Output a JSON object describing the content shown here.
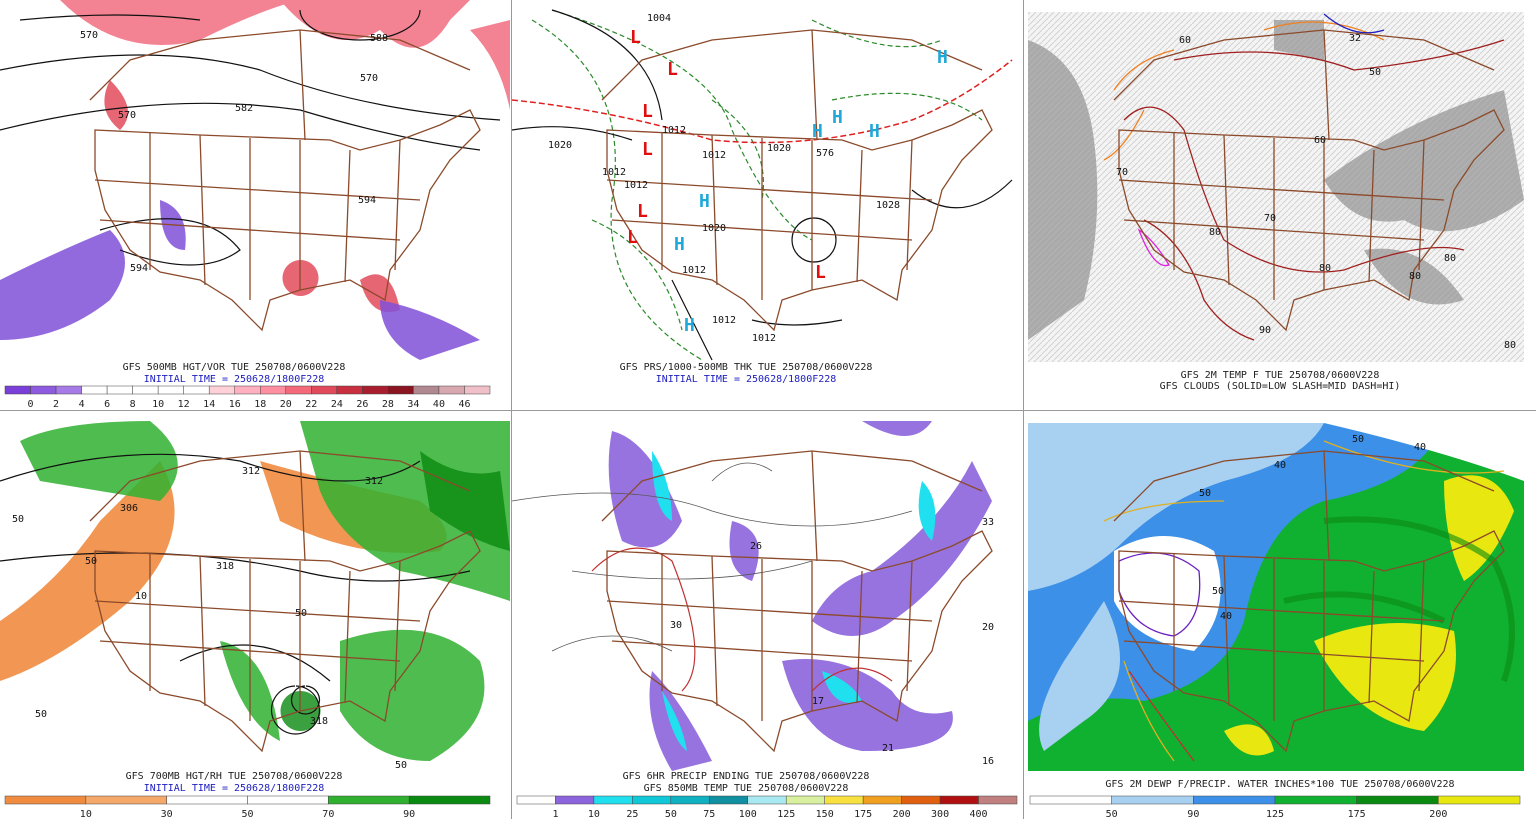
{
  "panels": [
    {
      "caption": "GFS 500MB HGT/VOR TUE 250708/0600V228",
      "initial_time": "INITIAL TIME = 250628/1800F228",
      "contour_labels": [
        "570",
        "588",
        "570",
        "570",
        "582",
        "594",
        "594"
      ],
      "colorbar": {
        "labels": [
          "0",
          "2",
          "4",
          "6",
          "8",
          "10",
          "12",
          "14",
          "16",
          "18",
          "20",
          "22",
          "24",
          "26",
          "28",
          "34",
          "40",
          "46"
        ],
        "colors": [
          "#7a3fd8",
          "#8e5ae0",
          "#a67be8",
          "#ffffff",
          "#ffffff",
          "#ffffff",
          "#ffffff",
          "#ffffff",
          "#ffd0d8",
          "#ffb0c0",
          "#ff8fa0",
          "#f46a7a",
          "#e04a5a",
          "#c83040",
          "#a81e2e",
          "#8a1420",
          "#b08890",
          "#d8a8b0",
          "#f0c0c8"
        ]
      }
    },
    {
      "caption": "GFS PRS/1000-500MB THK TUE 250708/0600V228",
      "initial_time": "INITIAL TIME = 250628/1800F228",
      "contour_labels": [
        "1004",
        "1012",
        "1020",
        "1020",
        "1012",
        "1012",
        "1012",
        "1020",
        "1012",
        "1012",
        "1012",
        "576",
        "1028"
      ],
      "centers": [
        "L",
        "L",
        "L",
        "L",
        "L",
        "L",
        "L",
        "H",
        "H",
        "H",
        "H",
        "H",
        "H",
        "H"
      ]
    },
    {
      "caption": "GFS 2M TEMP F TUE 250708/0600V228",
      "caption2": "GFS CLOUDS (SOLID=LOW SLASH=MID DASH=HI)",
      "contour_labels": [
        "32",
        "50",
        "60",
        "60",
        "70",
        "70",
        "80",
        "80",
        "80",
        "80",
        "90",
        "80"
      ]
    },
    {
      "caption": "GFS 700MB HGT/RH TUE 250708/0600V228",
      "initial_time": "INITIAL TIME = 250628/1800F228",
      "contour_labels": [
        "312",
        "306",
        "318",
        "312",
        "50",
        "50",
        "50",
        "50",
        "10",
        "318",
        "50"
      ],
      "colorbar": {
        "labels": [
          "10",
          "30",
          "50",
          "70",
          "90"
        ],
        "colors": [
          "#f08c40",
          "#f4a86a",
          "#ffffff",
          "#ffffff",
          "#30b030",
          "#0a8a10"
        ]
      }
    },
    {
      "caption": "GFS 6HR PRECIP ENDING TUE 250708/0600V228",
      "caption2": "GFS 850MB TEMP TUE 250708/0600V228",
      "contour_labels": [
        "33",
        "26",
        "20",
        "17",
        "21",
        "16",
        "30"
      ],
      "colorbar": {
        "labels": [
          "1",
          "10",
          "25",
          "50",
          "75",
          "100",
          "125",
          "150",
          "175",
          "200",
          "300",
          "400"
        ],
        "colors": [
          "#ffffff",
          "#8c64dc",
          "#20e0f0",
          "#10c8d8",
          "#10b0c0",
          "#1090a0",
          "#a8e8f0",
          "#d8f0a0",
          "#f8e040",
          "#f0a020",
          "#e06010",
          "#b01010",
          "#c08080"
        ]
      }
    },
    {
      "caption": "GFS 2M DEWP F/PRECIP. WATER INCHES*100 TUE 250708/0600V228",
      "contour_labels": [
        "50",
        "40",
        "40",
        "50",
        "50",
        "40"
      ],
      "colorbar": {
        "labels": [
          "50",
          "90",
          "125",
          "175",
          "200"
        ],
        "colors": [
          "#ffffff",
          "#a8d0f0",
          "#3c90e8",
          "#10b030",
          "#0a8a10",
          "#e8e810"
        ]
      }
    }
  ]
}
